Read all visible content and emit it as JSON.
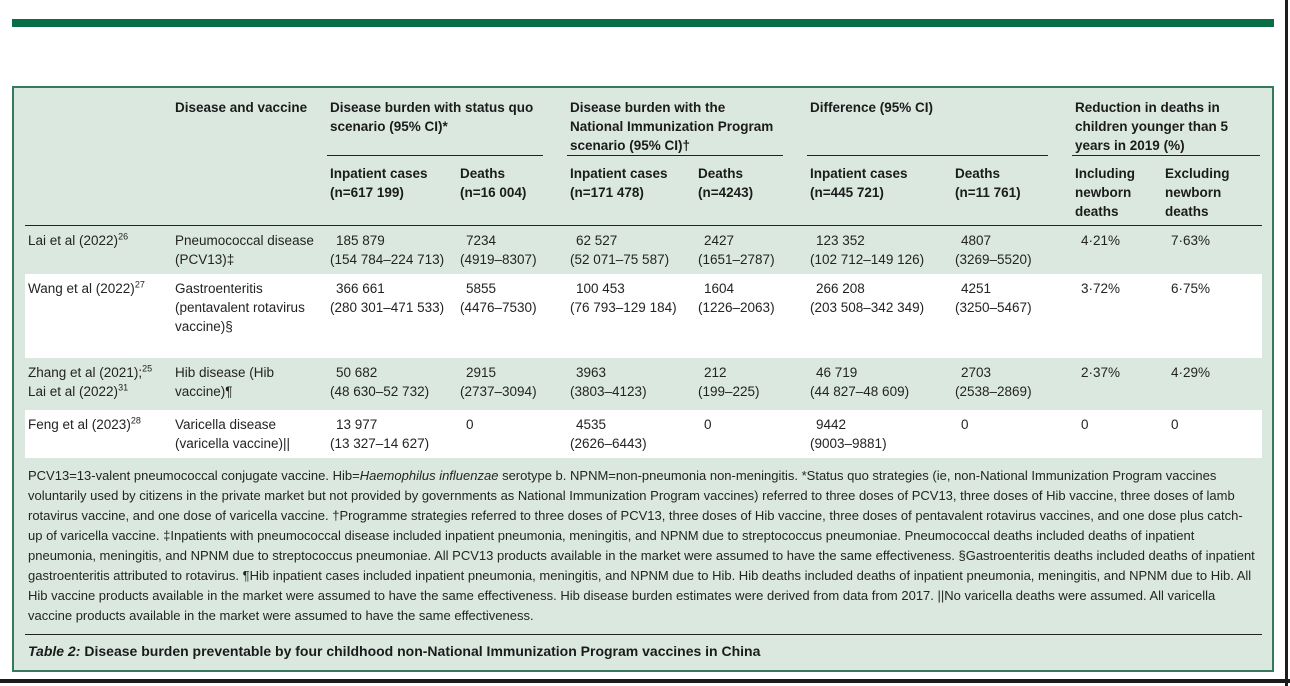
{
  "colors": {
    "accent_green": "#086e45",
    "card_border_green": "#37795c",
    "card_background_green": "#dbe8e0",
    "page_frame_black": "#1c1c1c"
  },
  "table": {
    "disease_header": "Disease and vaccine",
    "groups": [
      {
        "label": "Disease burden with status quo scenario (95% CI)*",
        "sub": [
          {
            "label": "Inpatient cases",
            "n": "(n=617 199)"
          },
          {
            "label": "Deaths",
            "n": "(n=16 004)"
          }
        ]
      },
      {
        "label": "Disease burden with the National Immunization Program scenario (95% CI)†",
        "sub": [
          {
            "label": "Inpatient cases",
            "n": "(n=171 478)"
          },
          {
            "label": "Deaths",
            "n": "(n=4243)"
          }
        ]
      },
      {
        "label": "Difference (95% CI)",
        "sub": [
          {
            "label": "Inpatient cases",
            "n": "(n=445 721)"
          },
          {
            "label": "Deaths",
            "n": "(n=11 761)"
          }
        ]
      },
      {
        "label": "Reduction in deaths in children younger than 5 years in 2019 (%)",
        "sub": [
          {
            "label": "Including newborn deaths"
          },
          {
            "label": "Excluding newborn deaths"
          }
        ]
      }
    ],
    "rows": [
      {
        "bg": "green",
        "study": [
          {
            "text": "Lai et al (2022)",
            "sup": "26"
          }
        ],
        "disease": "Pneumococcal disease (PCV13)‡",
        "cells": [
          {
            "value": "185 879",
            "ci": "(154 784–224 713)"
          },
          {
            "value": "7234",
            "ci": "(4919–8307)"
          },
          {
            "value": "62 527",
            "ci": "(52 071–75 587)"
          },
          {
            "value": "2427",
            "ci": "(1651–2787)"
          },
          {
            "value": "123 352",
            "ci": "(102 712–149 126)"
          },
          {
            "value": "4807",
            "ci": "(3269–5520)"
          },
          {
            "value": "4·21%"
          },
          {
            "value": "7·63%"
          }
        ]
      },
      {
        "bg": "white",
        "study": [
          {
            "text": "Wang et al (2022)",
            "sup": "27"
          }
        ],
        "disease": "Gastroenteritis (pentavalent rotavirus vaccine)§",
        "cells": [
          {
            "value": "366 661",
            "ci": "(280 301–471 533)"
          },
          {
            "value": "5855",
            "ci": "(4476–7530)"
          },
          {
            "value": "100 453",
            "ci": "(76 793–129 184)"
          },
          {
            "value": "1604",
            "ci": "(1226–2063)"
          },
          {
            "value": "266 208",
            "ci": "(203 508–342 349)"
          },
          {
            "value": "4251",
            "ci": "(3250–5467)"
          },
          {
            "value": "3·72%"
          },
          {
            "value": "6·75%"
          }
        ]
      },
      {
        "bg": "green",
        "study": [
          {
            "text": "Zhang et al (2021);",
            "sup": "25"
          },
          {
            "text": "Lai et al (2022)",
            "sup": "31"
          }
        ],
        "disease": "Hib disease (Hib vaccine)¶",
        "cells": [
          {
            "value": "50 682",
            "ci": "(48 630–52 732)"
          },
          {
            "value": "2915",
            "ci": "(2737–3094)"
          },
          {
            "value": "3963",
            "ci": "(3803–4123)"
          },
          {
            "value": "212",
            "ci": "(199–225)"
          },
          {
            "value": "46 719",
            "ci": "(44 827–48 609)"
          },
          {
            "value": "2703",
            "ci": "(2538–2869)"
          },
          {
            "value": "2·37%"
          },
          {
            "value": "4·29%"
          }
        ]
      },
      {
        "bg": "white",
        "study": [
          {
            "text": "Feng et al (2023)",
            "sup": "28"
          }
        ],
        "disease": "Varicella disease (varicella vaccine)||",
        "cells": [
          {
            "value": "13 977",
            "ci": "(13 327–14 627)"
          },
          {
            "value": "0"
          },
          {
            "value": "4535",
            "ci": "(2626–6443)"
          },
          {
            "value": "0"
          },
          {
            "value": "9442",
            "ci": "(9003–9881)"
          },
          {
            "value": "0"
          },
          {
            "value": "0"
          },
          {
            "value": "0"
          }
        ]
      }
    ]
  },
  "footnote": {
    "pre": "PCV13=13-valent pneumococcal conjugate vaccine. Hib=",
    "italic": "Haemophilus influenzae",
    "post": " serotype b. NPNM=non-pneumonia non-meningitis. *Status quo strategies (ie, non-National Immunization Program vaccines voluntarily used by citizens in the private market but not provided by governments as National Immunization Program vaccines) referred to three doses of PCV13, three doses of Hib vaccine, three doses of lamb rotavirus vaccine, and one dose of varicella vaccine. †Programme strategies referred to three doses of PCV13, three doses of Hib vaccine, three doses of pentavalent rotavirus vaccines, and one dose plus catch-up of varicella vaccine. ‡Inpatients with pneumococcal disease included inpatient pneumonia, meningitis, and NPNM due to streptococcus pneumoniae. Pneumococcal deaths included deaths of inpatient pneumonia, meningitis, and NPNM due to streptococcus pneumoniae. All PCV13 products available in the market were assumed to have the same effectiveness. §Gastroenteritis deaths included deaths of inpatient gastroenteritis attributed to rotavirus. ¶Hib inpatient cases included inpatient pneumonia, meningitis, and NPNM due to Hib. Hib deaths included deaths of inpatient pneumonia, meningitis, and NPNM due to Hib. All Hib vaccine products available in the market were assumed to have the same effectiveness. Hib disease burden estimates were derived from data from 2017. ||No varicella deaths were assumed. All varicella vaccine products available in the market were assumed to have the same effectiveness."
  },
  "caption": {
    "label": "Table 2:",
    "text": "Disease burden preventable by four childhood non-National Immunization Program vaccines in China"
  }
}
